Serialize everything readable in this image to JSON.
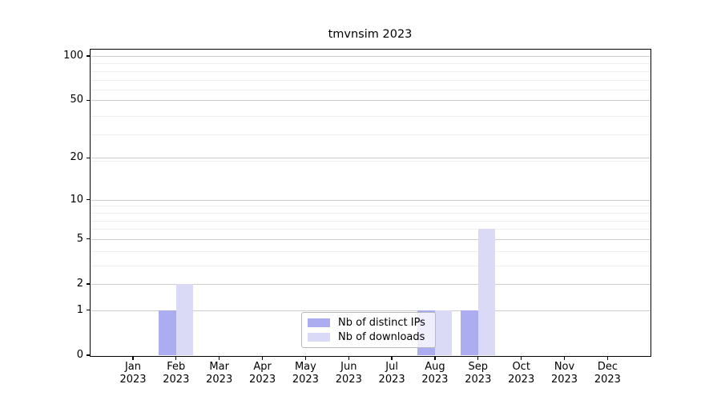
{
  "figure_title": "tmvnsim 2023",
  "chart_data": {
    "type": "bar",
    "title": "tmvnsim 2023",
    "y_scale": "log10(1+y)",
    "grid": "on",
    "ylim": [
      0,
      110
    ],
    "y_major_ticks": [
      0,
      1,
      2,
      5,
      10,
      20,
      50,
      100
    ],
    "y_minor_gridlines": [
      3,
      4,
      6,
      7,
      8,
      9,
      19,
      29,
      39,
      59,
      69,
      79,
      89
    ],
    "x_months": [
      "Jan",
      "Feb",
      "Mar",
      "Apr",
      "May",
      "Jun",
      "Jul",
      "Aug",
      "Sep",
      "Oct",
      "Nov",
      "Dec"
    ],
    "x_year": "2023",
    "series": [
      {
        "name": "Nb of distinct IPs",
        "color": "#acacf0",
        "values": [
          0,
          1,
          0,
          0,
          0,
          0,
          0,
          1,
          1,
          0,
          0,
          0
        ]
      },
      {
        "name": "Nb of downloads",
        "color": "#dadaf6",
        "values": [
          0,
          2,
          0,
          0,
          0,
          0,
          0,
          1,
          6,
          0,
          0,
          0
        ]
      }
    ],
    "legend": {
      "position": "lower center",
      "items": [
        {
          "label": "Nb of distinct IPs",
          "color": "#acacf0"
        },
        {
          "label": "Nb of downloads",
          "color": "#dadaf6"
        }
      ]
    }
  },
  "colors": {
    "background": "#ffffff",
    "spine": "#000000",
    "grid_major": "#cdcdcd",
    "grid_minor": "#efefef",
    "text": "#000000",
    "legend_border": "#b9b9b9"
  }
}
